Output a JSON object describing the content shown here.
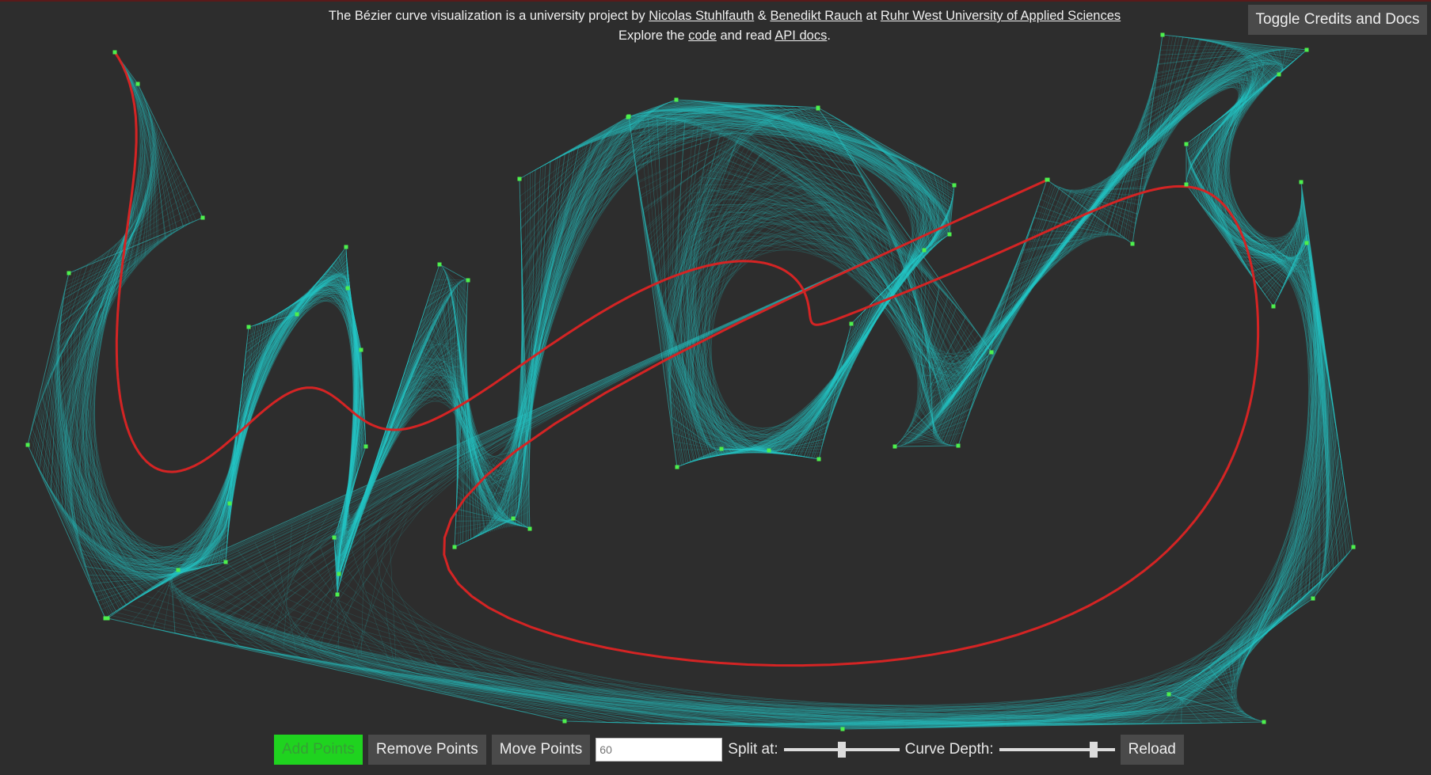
{
  "credits": {
    "line1_prefix": "The Bézier curve visualization is a university project by ",
    "author1": "Nicolas Stuhlfauth",
    "amp": " & ",
    "author2": "Benedikt Rauch",
    "at": " at ",
    "university": "Ruhr West University of Applied Sciences",
    "line2_prefix": "Explore the ",
    "code_link": "code",
    "and_read": " and read ",
    "docs_link": "API docs",
    "period": "."
  },
  "toggle_label": "Toggle Credits and Docs",
  "controls": {
    "add_label": "Add Points",
    "remove_label": "Remove Points",
    "move_label": "Move Points",
    "count_placeholder": "60",
    "split_label": "Split at:",
    "split_value": 0.5,
    "depth_label": "Curve Depth:",
    "depth_value": 0.82,
    "reload_label": "Reload"
  },
  "colors": {
    "background": "#2d2d2d",
    "control_polygon": "#2e8f8f",
    "construction_lines": "#28c9c9",
    "curve": "#d42424",
    "point": "#4df04d",
    "active_button": "#1fd31f"
  }
}
